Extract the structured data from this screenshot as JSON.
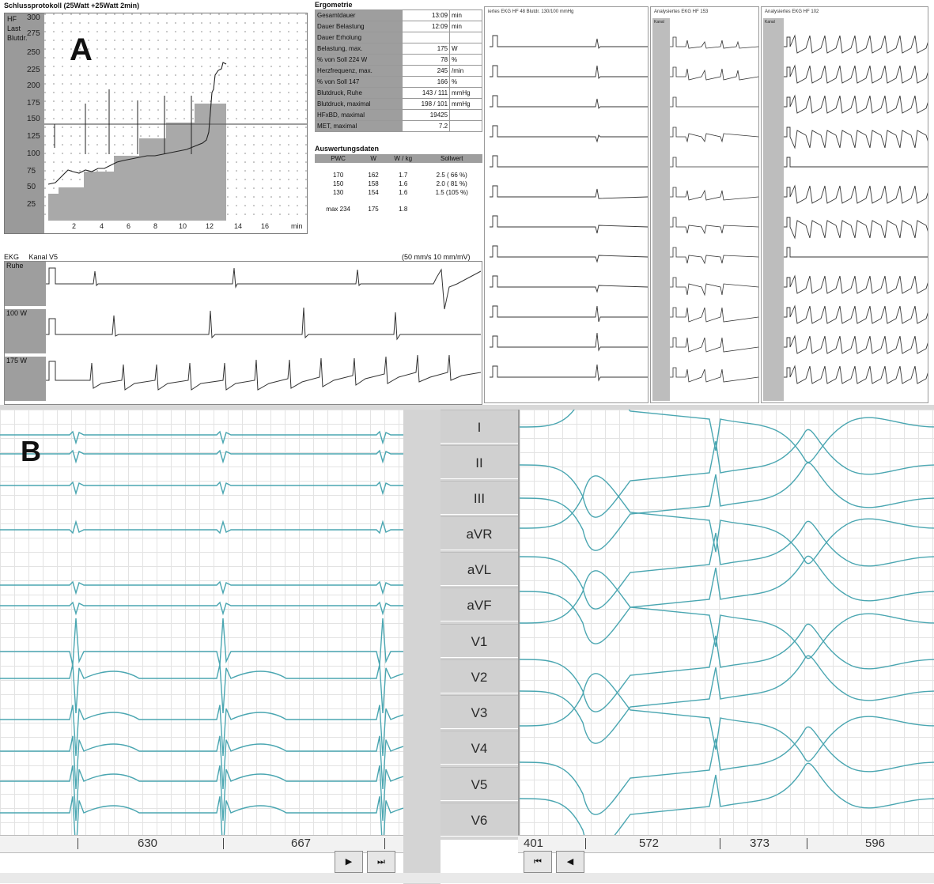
{
  "panel_a": {
    "label": "A",
    "chart_title": "Schlussprotokoll  (25Watt  +25Watt  2min)",
    "row_labels": [
      "HF",
      "Last",
      "Blutdr."
    ],
    "y_ticks": [
      "300",
      "275",
      "250",
      "225",
      "200",
      "175",
      "150",
      "125",
      "100",
      "75",
      "50",
      "25"
    ],
    "x_ticks": [
      "2",
      "4",
      "6",
      "8",
      "10",
      "12",
      "14",
      "16",
      "min"
    ],
    "ergometrie": {
      "title": "Ergometrie",
      "rows": [
        {
          "label": "Gesamtdauer",
          "value": "13:09",
          "unit": "min"
        },
        {
          "label": "Dauer Belastung",
          "value": "12:09",
          "unit": "min"
        },
        {
          "label": "Dauer Erholung",
          "value": "",
          "unit": ""
        },
        {
          "label": "Belastung, max.",
          "value": "175",
          "unit": "W"
        },
        {
          "label": "% von Soll 224 W",
          "value": "78",
          "unit": "%"
        },
        {
          "label": "Herzfrequenz, max.",
          "value": "245",
          "unit": "/min"
        },
        {
          "label": "% von Soll 147",
          "value": "166",
          "unit": "%"
        },
        {
          "label": "Blutdruck, Ruhe",
          "value": "143 / 111",
          "unit": "mmHg"
        },
        {
          "label": "Blutdruck, maximal",
          "value": "198 / 101",
          "unit": "mmHg"
        },
        {
          "label": "HFxBD, maximal",
          "value": "19425",
          "unit": ""
        },
        {
          "label": "MET, maximal",
          "value": "7.2",
          "unit": ""
        }
      ]
    },
    "auswertung": {
      "title": "Auswertungsdaten",
      "headers": [
        "PWC",
        "W",
        "W / kg",
        "Sollwert"
      ],
      "rows": [
        [
          "170",
          "162",
          "1.7",
          "2.5  ( 66 %)"
        ],
        [
          "150",
          "158",
          "1.6",
          "2.0  ( 81 %)"
        ],
        [
          "130",
          "154",
          "1.6",
          "1.5  (105 %)"
        ],
        [
          "max 234",
          "175",
          "1.8",
          ""
        ]
      ]
    },
    "ekg_strip": {
      "title": "EKG",
      "channel": "Kanal  V5",
      "speed": "(50 mm/s  10 mm/mV)",
      "rows": [
        "Ruhe",
        "100 W",
        "175 W"
      ]
    },
    "scan1_header": "iertes EKG   HF  48   Blutdr.   130/100 mmHg",
    "scan2_header": "Analysiertes EKG   HF  153",
    "scan3_header": "Analysiertes EKG   HF  102",
    "scan_col_label": "Kanal"
  },
  "panel_b": {
    "label": "B",
    "leads": [
      "I",
      "II",
      "III",
      "aVR",
      "aVL",
      "aVF",
      "V1",
      "V2",
      "V3",
      "V4",
      "V5",
      "V6"
    ],
    "left_intervals": [
      "630",
      "667"
    ],
    "right_intervals": [
      "401",
      "572",
      "373",
      "596"
    ],
    "btn_play": "▶",
    "btn_end": "⏭",
    "btn_start": "⏮",
    "btn_back": "◀"
  },
  "colors": {
    "trace": "#4aa6b1",
    "grid": "#e3e3e3",
    "stair": "#a9a9a9"
  }
}
